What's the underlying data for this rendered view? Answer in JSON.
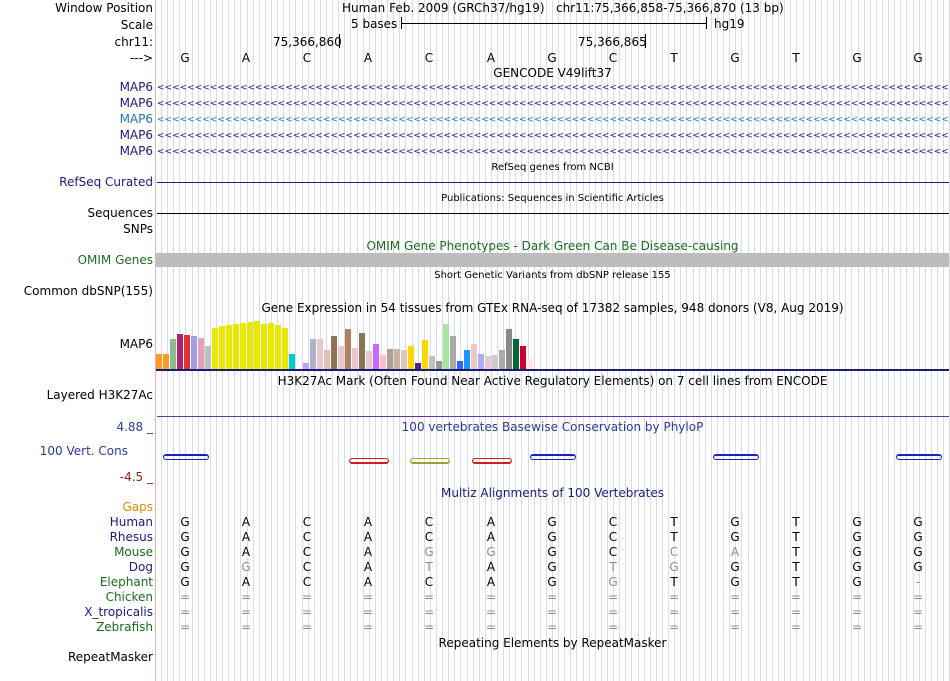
{
  "header": {
    "window_position_label": "Window Position",
    "assembly": "Human Feb. 2009 (GRCh37/hg19)",
    "position": "chr11:75,366,858-75,366,870 (13 bp)",
    "scale_label": "Scale",
    "scale_text": "5 bases",
    "scale_db": "hg19",
    "chrom_label": "chr11:",
    "coord_1": "75,366,860",
    "coord_2": "75,366,865",
    "strand_label": "--->"
  },
  "bases": [
    "G",
    "A",
    "C",
    "A",
    "C",
    "A",
    "G",
    "C",
    "T",
    "G",
    "T",
    "G",
    "G"
  ],
  "tracks": {
    "gencode": {
      "title": "GENCODE V49lift37",
      "genes": [
        "MAP6",
        "MAP6",
        "MAP6",
        "MAP6",
        "MAP6"
      ],
      "arrow_text": "<<<<<<<<<<<<<<<<<<<<<<<<<<<<<<<<<<<<<<<<<<<<<<<<<<<<<<<<<<<<<<<<<<<<<<<<<<<<<<<<<<<<<<<<<<<<<<<<<<<<<<<<<<<<<<<"
    },
    "refseq": {
      "title": "RefSeq genes from NCBI",
      "label": "RefSeq Curated"
    },
    "pubs": {
      "title": "Publications: Sequences in Scientific Articles",
      "label": "Sequences"
    },
    "snps_label": "SNPs",
    "omim": {
      "title": "OMIM Gene Phenotypes - Dark Green Can Be Disease-causing",
      "label": "OMIM Genes"
    },
    "dbsnp": {
      "title": "Short Genetic Variants from dbSNP release 155",
      "label": "Common dbSNP(155)"
    },
    "gtex": {
      "title": "Gene Expression in 54 tissues from GTEx RNA-seq of 17382 samples, 948 donors (V8, Aug 2019)",
      "label": "MAP6"
    },
    "h3k27ac": {
      "title": "H3K27Ac Mark (Often Found Near Active Regulatory Elements) on 7 cell lines from ENCODE",
      "label": "Layered H3K27Ac"
    },
    "phylop": {
      "title": "100 vertebrates Basewise Conservation by PhyloP",
      "label": "100 Vert. Cons",
      "max": "4.88 _",
      "min": "-4.5 _"
    },
    "multiz": {
      "title": "Multiz Alignments of 100 Vertebrates",
      "gaps_label": "Gaps"
    },
    "repeatmasker": {
      "title": "Repeating Elements by RepeatMasker",
      "label": "RepeatMasker"
    }
  },
  "species": [
    {
      "name": "Human",
      "seq": [
        "G",
        "A",
        "C",
        "A",
        "C",
        "A",
        "G",
        "C",
        "T",
        "G",
        "T",
        "G",
        "G"
      ]
    },
    {
      "name": "Rhesus",
      "seq": [
        "G",
        "A",
        "C",
        "A",
        "C",
        "A",
        "G",
        "C",
        "T",
        "G",
        "T",
        "G",
        "G"
      ]
    },
    {
      "name": "Mouse",
      "seq": [
        "G",
        "A",
        "C",
        "A",
        "G",
        "G",
        "G",
        "C",
        "C",
        "A",
        "T",
        "G",
        "G"
      ]
    },
    {
      "name": "Dog",
      "seq": [
        "G",
        "G",
        "C",
        "A",
        "T",
        "A",
        "G",
        "T",
        "G",
        "G",
        "T",
        "G",
        "G"
      ]
    },
    {
      "name": "Elephant",
      "seq": [
        "G",
        "A",
        "C",
        "A",
        "C",
        "A",
        "G",
        "G",
        "T",
        "G",
        "T",
        "G",
        "-"
      ]
    },
    {
      "name": "Chicken",
      "seq": [
        "=",
        "=",
        "=",
        "=",
        "=",
        "=",
        "=",
        "=",
        "=",
        "=",
        "=",
        "=",
        "="
      ]
    },
    {
      "name": "X_tropicalis",
      "seq": [
        "=",
        "=",
        "=",
        "=",
        "=",
        "=",
        "=",
        "=",
        "=",
        "=",
        "=",
        "=",
        "="
      ]
    },
    {
      "name": "Zebrafish",
      "seq": [
        "=",
        "=",
        "=",
        "=",
        "=",
        "=",
        "=",
        "=",
        "=",
        "=",
        "=",
        "=",
        "="
      ]
    }
  ],
  "mismatch_map": {
    "Mouse": [
      false,
      false,
      false,
      false,
      true,
      true,
      false,
      false,
      true,
      true,
      false,
      false,
      false
    ],
    "Dog": [
      false,
      true,
      false,
      false,
      true,
      false,
      false,
      true,
      true,
      false,
      false,
      false,
      false
    ],
    "Elephant": [
      false,
      false,
      false,
      false,
      false,
      false,
      false,
      true,
      false,
      false,
      false,
      false,
      false
    ]
  },
  "gtex_values": [
    0.3,
    0.3,
    0.6,
    0.7,
    0.68,
    0.65,
    0.62,
    0.45,
    0.82,
    0.85,
    0.88,
    0.9,
    0.92,
    0.93,
    0.95,
    0.9,
    0.92,
    0.88,
    0.82,
    0.3,
    0.0,
    0.12,
    0.6,
    0.6,
    0.38,
    0.65,
    0.45,
    0.8,
    0.42,
    0.72,
    0.35,
    0.5,
    0.28,
    0.4,
    0.4,
    0.38,
    0.45,
    0.12,
    0.58,
    0.25,
    0.15,
    0.9,
    0.65,
    0.15,
    0.38,
    0.5,
    0.3,
    0.25,
    0.28,
    0.38,
    0.8,
    0.6,
    0.45,
    0.2
  ],
  "gtex_colors": [
    "#ff9a2a",
    "#ff9a2a",
    "#8fbc8f",
    "#b2226b",
    "#e03030",
    "#a0a0e0",
    "#e3a0b8",
    "#c0c0c0",
    "#e8e800",
    "#e8e800",
    "#e8e800",
    "#e8e800",
    "#e8e800",
    "#e8e800",
    "#e8e800",
    "#e8e800",
    "#e8e800",
    "#e8e800",
    "#e8e800",
    "#00cccc",
    "#e8e800",
    "#aaaaff",
    "#b0b0d0",
    "#e8c8c8",
    "#e0c0b0",
    "#8b7355",
    "#e8c8c8",
    "#b08060",
    "#e8c8c8",
    "#8b7355",
    "#e8c8c8",
    "#cc66ff",
    "#ffc0cb",
    "#b0a090",
    "#c8b4a0",
    "#dec8b4",
    "#ffd700",
    "#552288",
    "#ffd700",
    "#c0c0c0",
    "#999999",
    "#a8e6a0",
    "#aaaaaa",
    "#3366ff",
    "#1e90ff",
    "#e8c8c8",
    "#aaaaff",
    "#e8c8c8",
    "#cccccc",
    "#aaaaaa",
    "#888888",
    "#006633",
    "#cc0033",
    "#ffe4e1"
  ],
  "phylop_segments": [
    {
      "pos": 0,
      "color": "#2020c0",
      "dir": "up"
    },
    {
      "pos": 3,
      "color": "#cc2020",
      "dir": "down"
    },
    {
      "pos": 4,
      "color": "#a0a030",
      "dir": "down"
    },
    {
      "pos": 5,
      "color": "#cc2020",
      "dir": "down"
    },
    {
      "pos": 6,
      "color": "#2020c0",
      "dir": "up"
    },
    {
      "pos": 9,
      "color": "#2020c0",
      "dir": "up"
    },
    {
      "pos": 12,
      "color": "#2020c0",
      "dir": "up"
    }
  ]
}
